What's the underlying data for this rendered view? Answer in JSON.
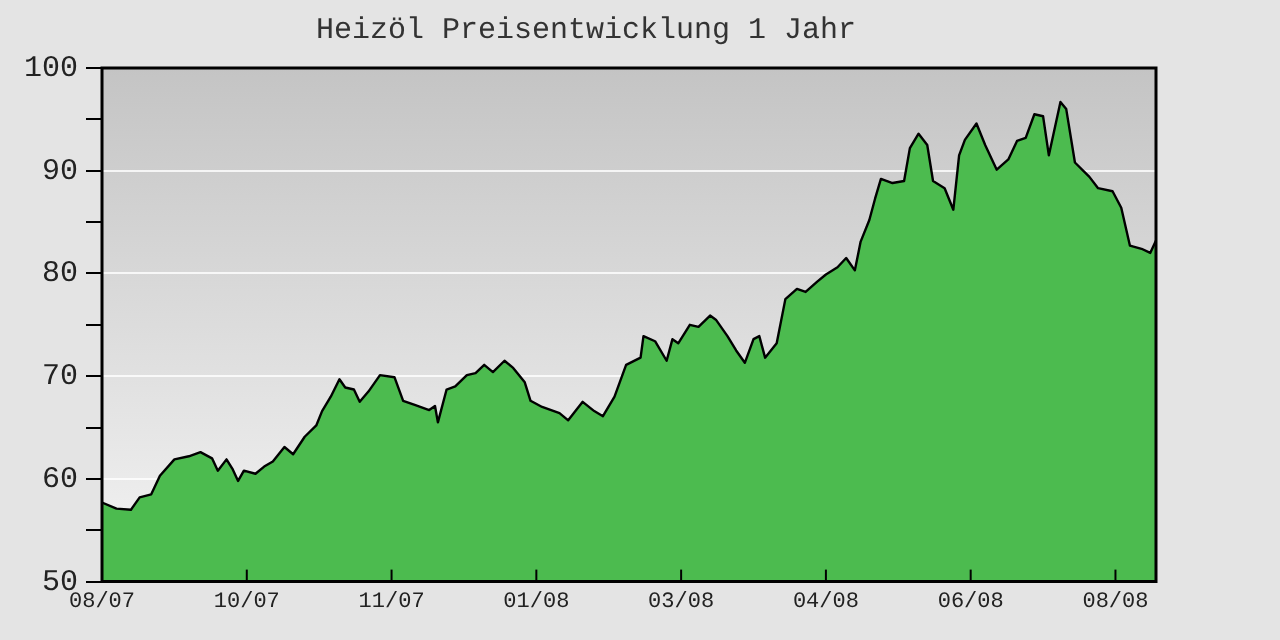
{
  "chart_data": {
    "type": "area",
    "title": "Heizöl Preisentwicklung 1 Jahr",
    "grid": "y",
    "legend": false,
    "marker": "none",
    "line_style": "solid",
    "xlim": [
      "2007-08-20",
      "2008-08-18"
    ],
    "xticks": [
      {
        "value": "2007-08-20",
        "label": "08/07"
      },
      {
        "value": "2007-10-09",
        "label": "10/07"
      },
      {
        "value": "2007-11-28",
        "label": "11/07"
      },
      {
        "value": "2008-01-17",
        "label": "01/08"
      },
      {
        "value": "2008-03-07",
        "label": "03/08"
      },
      {
        "value": "2008-04-26",
        "label": "04/08"
      },
      {
        "value": "2008-06-15",
        "label": "06/08"
      },
      {
        "value": "2008-08-04",
        "label": "08/08"
      }
    ],
    "ylim": [
      50,
      100
    ],
    "yticks": [
      50,
      {
        "value": 55,
        "label": null
      },
      60,
      {
        "value": 65,
        "label": null
      },
      70,
      {
        "value": 75,
        "label": null
      },
      80,
      {
        "value": 85,
        "label": null
      },
      90,
      {
        "value": 95,
        "label": null
      },
      100
    ],
    "x": [
      "2007-08-20",
      "2007-08-25",
      "2007-08-30",
      "2007-09-02",
      "2007-09-06",
      "2007-09-09",
      "2007-09-14",
      "2007-09-19",
      "2007-09-23",
      "2007-09-27",
      "2007-09-29",
      "2007-10-02",
      "2007-10-04",
      "2007-10-06",
      "2007-10-08",
      "2007-10-12",
      "2007-10-15",
      "2007-10-18",
      "2007-10-22",
      "2007-10-25",
      "2007-10-29",
      "2007-11-02",
      "2007-11-04",
      "2007-11-07",
      "2007-11-10",
      "2007-11-12",
      "2007-11-15",
      "2007-11-17",
      "2007-11-20",
      "2007-11-24",
      "2007-11-29",
      "2007-12-02",
      "2007-12-06",
      "2007-12-11",
      "2007-12-13",
      "2007-12-14",
      "2007-12-17",
      "2007-12-20",
      "2007-12-24",
      "2007-12-27",
      "2007-12-30",
      "2008-01-02",
      "2008-01-06",
      "2008-01-09",
      "2008-01-13",
      "2008-01-15",
      "2008-01-19",
      "2008-01-25",
      "2008-01-28",
      "2008-02-02",
      "2008-02-06",
      "2008-02-09",
      "2008-02-13",
      "2008-02-17",
      "2008-02-22",
      "2008-02-23",
      "2008-02-27",
      "2008-03-02",
      "2008-03-04",
      "2008-03-06",
      "2008-03-10",
      "2008-03-13",
      "2008-03-17",
      "2008-03-19",
      "2008-03-23",
      "2008-03-26",
      "2008-03-29",
      "2008-04-01",
      "2008-04-03",
      "2008-04-05",
      "2008-04-09",
      "2008-04-12",
      "2008-04-16",
      "2008-04-19",
      "2008-04-23",
      "2008-04-26",
      "2008-04-30",
      "2008-05-03",
      "2008-05-06",
      "2008-05-08",
      "2008-05-11",
      "2008-05-13",
      "2008-05-15",
      "2008-05-19",
      "2008-05-23",
      "2008-05-25",
      "2008-05-28",
      "2008-05-31",
      "2008-06-02",
      "2008-06-06",
      "2008-06-09",
      "2008-06-11",
      "2008-06-13",
      "2008-06-17",
      "2008-06-20",
      "2008-06-24",
      "2008-06-28",
      "2008-07-01",
      "2008-07-04",
      "2008-07-07",
      "2008-07-10",
      "2008-07-12",
      "2008-07-16",
      "2008-07-18",
      "2008-07-21",
      "2008-07-26",
      "2008-07-29",
      "2008-08-03",
      "2008-08-06",
      "2008-08-09",
      "2008-08-13",
      "2008-08-16",
      "2008-08-18"
    ],
    "series": [
      {
        "color": "#4cbb4f",
        "values": [
          57.7,
          57.1,
          57,
          58.2,
          58.5,
          60.3,
          61.9,
          62.2,
          62.6,
          62,
          60.8,
          61.9,
          61,
          59.8,
          60.8,
          60.5,
          61.2,
          61.7,
          63.1,
          62.4,
          64.1,
          65.2,
          66.6,
          68,
          69.7,
          68.9,
          68.7,
          67.5,
          68.5,
          70.1,
          69.9,
          67.6,
          67.2,
          66.7,
          67.1,
          65.5,
          68.7,
          69,
          70.1,
          70.3,
          71.1,
          70.4,
          71.5,
          70.8,
          69.4,
          67.6,
          67,
          66.4,
          65.7,
          67.5,
          66.6,
          66.1,
          68,
          71.1,
          71.8,
          73.9,
          73.4,
          71.5,
          73.6,
          73.2,
          75,
          74.8,
          75.9,
          75.5,
          73.9,
          72.5,
          71.3,
          73.6,
          73.9,
          71.8,
          73.2,
          77.5,
          78.5,
          78.2,
          79.2,
          79.9,
          80.6,
          81.5,
          80.3,
          83.1,
          85.2,
          87.3,
          89.2,
          88.8,
          89,
          92.2,
          93.6,
          92.5,
          89,
          88.3,
          86.2,
          91.5,
          93,
          94.6,
          92.5,
          90.1,
          91.1,
          92.9,
          93.2,
          95.5,
          95.3,
          91.5,
          96.7,
          96,
          90.8,
          89.4,
          88.3,
          88,
          86.4,
          82.7,
          82.4,
          82,
          83.2
        ]
      }
    ]
  }
}
